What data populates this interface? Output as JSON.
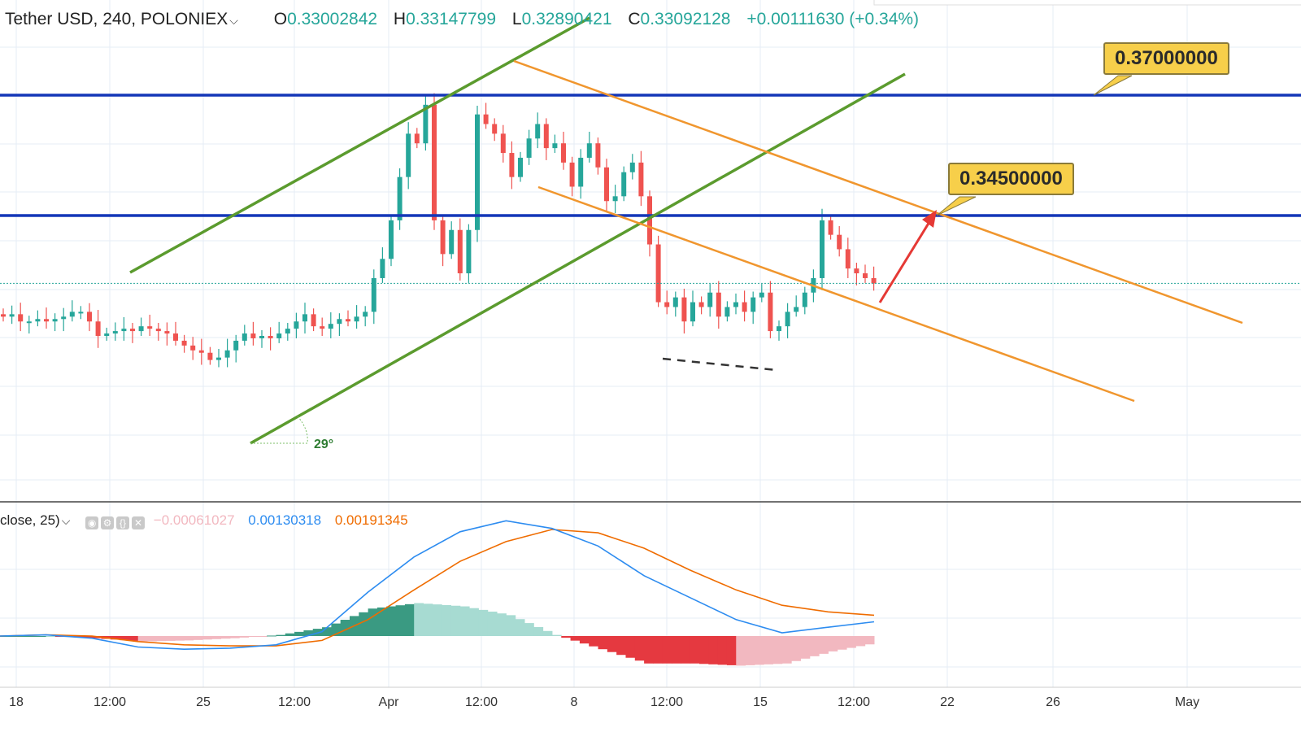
{
  "header": {
    "symbol": "Tether USD, 240, POLONIEX",
    "open_key": "O",
    "open": "0.33002842",
    "high_key": "H",
    "high": "0.33147799",
    "low_key": "L",
    "low": "0.32890421",
    "close_key": "C",
    "close": "0.33092128",
    "change": "+0.00111630 (+0.34%)"
  },
  "indicator": {
    "label": "close, 25)",
    "histogram_value": "−0.00061027",
    "macd_value": "0.00130318",
    "signal_value": "0.00191345"
  },
  "annotations": {
    "level_high": "0.37000000",
    "level_mid": "0.34500000",
    "angle": "29°"
  },
  "x_axis_labels": [
    "18",
    "12:00",
    "25",
    "12:00",
    "Apr",
    "12:00",
    "8",
    "12:00",
    "15",
    "12:00",
    "22",
    "26",
    "May"
  ],
  "colors": {
    "up": "#26a69a",
    "down": "#ef5350",
    "horizontal_level": "#1437b8",
    "channel_green": "#5b9b2e",
    "channel_orange": "#f0962e",
    "arrow": "#e53935",
    "macd_line": "#2d8cf0",
    "signal_line": "#ef6c00",
    "label_bg": "#f7cf4a"
  },
  "chart_data": [
    {
      "type": "candlestick",
      "title": "Tether USD, 240, POLONIEX",
      "y_levels": [
        0.37,
        0.345
      ],
      "last_close": 0.33092128,
      "candles_close_sketch": [
        0.324,
        0.3245,
        0.323,
        0.323,
        0.3235,
        0.323,
        0.3235,
        0.324,
        0.325,
        0.325,
        0.323,
        0.32,
        0.3205,
        0.321,
        0.3215,
        0.321,
        0.322,
        0.3215,
        0.321,
        0.3205,
        0.319,
        0.318,
        0.317,
        0.3165,
        0.315,
        0.3155,
        0.317,
        0.319,
        0.3205,
        0.3195,
        0.32,
        0.3195,
        0.3205,
        0.3215,
        0.323,
        0.3245,
        0.322,
        0.3215,
        0.3225,
        0.3235,
        0.323,
        0.324,
        0.325,
        0.332,
        0.336,
        0.344,
        0.353,
        0.362,
        0.36,
        0.368,
        0.344,
        0.337,
        0.342,
        0.333,
        0.342,
        0.366,
        0.364,
        0.362,
        0.358,
        0.353,
        0.357,
        0.361,
        0.364,
        0.359,
        0.36,
        0.356,
        0.351,
        0.357,
        0.36,
        0.355,
        0.348,
        0.349,
        0.354,
        0.356,
        0.349,
        0.339,
        0.327,
        0.326,
        0.328,
        0.323,
        0.327,
        0.326,
        0.329,
        0.324,
        0.326,
        0.327,
        0.325,
        0.328,
        0.329,
        0.321,
        0.322,
        0.325,
        0.326,
        0.329,
        0.332,
        0.344,
        0.341,
        0.338,
        0.334,
        0.333,
        0.332,
        0.3309
      ]
    },
    {
      "type": "line",
      "title": "close, 25)",
      "series": [
        {
          "name": "MACD",
          "values": [
            0.0,
            0.0001,
            -0.0002,
            -0.001,
            -0.0012,
            -0.0011,
            -0.0008,
            0.0004,
            0.004,
            0.0072,
            0.0095,
            0.0105,
            0.0098,
            0.0082,
            0.0055,
            0.0035,
            0.0015,
            0.0003,
            0.0008,
            0.0013
          ]
        },
        {
          "name": "Signal",
          "values": [
            0.0,
            0.0001,
            0.0,
            -0.0005,
            -0.0008,
            -0.0009,
            -0.0009,
            -0.0004,
            0.0015,
            0.0042,
            0.0068,
            0.0086,
            0.0097,
            0.0094,
            0.008,
            0.006,
            0.0042,
            0.0028,
            0.0022,
            0.0019
          ]
        },
        {
          "name": "Histogram",
          "values": [
            0.0,
            0.0,
            -0.0002,
            -0.0005,
            -0.0004,
            -0.0002,
            0.0001,
            0.0008,
            0.0025,
            0.003,
            0.0027,
            0.0019,
            0.0001,
            -0.0012,
            -0.0025,
            -0.0025,
            -0.0027,
            -0.0025,
            -0.0014,
            -0.0006
          ]
        }
      ]
    }
  ]
}
